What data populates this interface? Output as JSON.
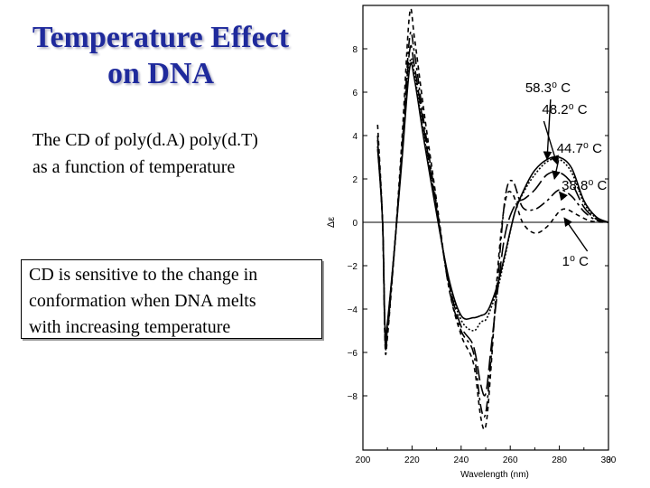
{
  "slide": {
    "title_lines": [
      "Temperature Effect",
      "on DNA"
    ],
    "subtitle_lines": [
      "The CD of poly(d.A) poly(d.T)",
      "as a function of temperature"
    ],
    "note_lines": [
      "CD is sensitive to the change in",
      "conformation when DNA melts",
      "with increasing temperature"
    ]
  },
  "chart_data": {
    "type": "line",
    "xlabel": "Wavelength (nm)",
    "ylabel": "Δε",
    "xlim": [
      200,
      300
    ],
    "ylim": [
      -10.5,
      10
    ],
    "xticks": [
      "200",
      "220",
      "240",
      "260",
      "280",
      "300",
      "3"
    ],
    "yticks": [
      "8",
      "6",
      "4",
      "2",
      "0",
      "−2",
      "−4",
      "−6",
      "−8"
    ],
    "ytick_values": [
      8,
      6,
      4,
      2,
      0,
      -2,
      -4,
      -6,
      -8
    ],
    "series": [
      {
        "label": "1⁰ C",
        "dash": "5,4",
        "points": [
          [
            206,
            4.5
          ],
          [
            208,
            0
          ],
          [
            209,
            -5.6
          ],
          [
            210,
            -5.3
          ],
          [
            213,
            -1
          ],
          [
            216,
            4
          ],
          [
            219,
            9.6
          ],
          [
            221,
            8.5
          ],
          [
            225,
            5
          ],
          [
            230,
            1
          ],
          [
            235,
            -3
          ],
          [
            240,
            -5.2
          ],
          [
            245,
            -6.5
          ],
          [
            248,
            -9
          ],
          [
            250,
            -9.4
          ],
          [
            252,
            -7
          ],
          [
            255,
            -2
          ],
          [
            258,
            1
          ],
          [
            261,
            1.3
          ],
          [
            265,
            0
          ],
          [
            270,
            -0.5
          ],
          [
            275,
            -0.2
          ],
          [
            280,
            0.5
          ],
          [
            283,
            0.6
          ],
          [
            288,
            0.3
          ],
          [
            293,
            0.05
          ],
          [
            300,
            0
          ]
        ]
      },
      {
        "label": "38.8⁰ C",
        "dash": "11,4,3,4",
        "points": [
          [
            206,
            4
          ],
          [
            208,
            0
          ],
          [
            209,
            -5.4
          ],
          [
            210,
            -5.1
          ],
          [
            213,
            -1
          ],
          [
            216,
            3.5
          ],
          [
            219,
            8.5
          ],
          [
            221,
            7.8
          ],
          [
            225,
            4.5
          ],
          [
            230,
            0.8
          ],
          [
            235,
            -3
          ],
          [
            240,
            -5
          ],
          [
            245,
            -6
          ],
          [
            248,
            -8.5
          ],
          [
            250,
            -8.8
          ],
          [
            252,
            -6.5
          ],
          [
            255,
            -2.5
          ],
          [
            258,
            1.2
          ],
          [
            261,
            1.9
          ],
          [
            265,
            0.7
          ],
          [
            270,
            0.6
          ],
          [
            275,
            1
          ],
          [
            280,
            1.5
          ],
          [
            285,
            1.2
          ],
          [
            290,
            0.5
          ],
          [
            295,
            0.1
          ],
          [
            300,
            0
          ]
        ]
      },
      {
        "label": "44.7⁰ C",
        "dash": "16,5",
        "points": [
          [
            206,
            3.8
          ],
          [
            208,
            0
          ],
          [
            209,
            -5.2
          ],
          [
            210,
            -4.9
          ],
          [
            213,
            -1
          ],
          [
            216,
            3.4
          ],
          [
            219,
            7.9
          ],
          [
            221,
            7.2
          ],
          [
            225,
            4.2
          ],
          [
            230,
            0.6
          ],
          [
            235,
            -2.8
          ],
          [
            240,
            -4.8
          ],
          [
            245,
            -5.7
          ],
          [
            248,
            -7.5
          ],
          [
            250,
            -7.9
          ],
          [
            252,
            -6
          ],
          [
            255,
            -3
          ],
          [
            258,
            -0.5
          ],
          [
            262,
            0.8
          ],
          [
            266,
            1.1
          ],
          [
            270,
            1.5
          ],
          [
            275,
            2.2
          ],
          [
            280,
            2.3
          ],
          [
            285,
            1.8
          ],
          [
            290,
            0.7
          ],
          [
            295,
            0.15
          ],
          [
            300,
            0
          ]
        ]
      },
      {
        "label": "48.2⁰ C",
        "dash": "2,2",
        "points": [
          [
            206,
            3.5
          ],
          [
            208,
            0
          ],
          [
            209,
            -5
          ],
          [
            210,
            -4.7
          ],
          [
            213,
            -1
          ],
          [
            216,
            3.2
          ],
          [
            219,
            7.3
          ],
          [
            221,
            6.8
          ],
          [
            225,
            3.9
          ],
          [
            230,
            0.5
          ],
          [
            235,
            -2.7
          ],
          [
            240,
            -4.5
          ],
          [
            245,
            -5
          ],
          [
            248,
            -4.6
          ],
          [
            250,
            -4.5
          ],
          [
            252,
            -4
          ],
          [
            255,
            -3
          ],
          [
            258,
            -1.5
          ],
          [
            262,
            0.5
          ],
          [
            266,
            1.5
          ],
          [
            270,
            2.2
          ],
          [
            275,
            2.8
          ],
          [
            280,
            2.9
          ],
          [
            285,
            2.3
          ],
          [
            290,
            0.9
          ],
          [
            295,
            0.2
          ],
          [
            300,
            0
          ]
        ]
      },
      {
        "label": "58.3⁰ C",
        "dash": "",
        "points": [
          [
            206,
            3.4
          ],
          [
            208,
            0
          ],
          [
            209,
            -4.9
          ],
          [
            210,
            -4.6
          ],
          [
            213,
            -1
          ],
          [
            216,
            3
          ],
          [
            219,
            7.1
          ],
          [
            221,
            6.6
          ],
          [
            225,
            3.7
          ],
          [
            230,
            0.4
          ],
          [
            235,
            -2.6
          ],
          [
            240,
            -4.3
          ],
          [
            245,
            -4.4
          ],
          [
            248,
            -4.3
          ],
          [
            250,
            -4.2
          ],
          [
            252,
            -3.8
          ],
          [
            255,
            -2.8
          ],
          [
            258,
            -1.4
          ],
          [
            262,
            0.5
          ],
          [
            266,
            1.6
          ],
          [
            270,
            2.4
          ],
          [
            275,
            2.9
          ],
          [
            280,
            3
          ],
          [
            285,
            2.5
          ],
          [
            290,
            1
          ],
          [
            295,
            0.25
          ],
          [
            300,
            0
          ]
        ]
      }
    ],
    "annotations": [
      {
        "text": "58.3⁰ C",
        "x": 272,
        "y": 6.0,
        "arrow_to": [
          275,
          2.9
        ]
      },
      {
        "text": "48.2⁰ C",
        "x": 295,
        "y": 5.0,
        "arrow_to": [
          279,
          2.7
        ]
      },
      {
        "text": "44.7⁰ C",
        "x": 301,
        "y": 3.2,
        "arrow_to": [
          278,
          2.0
        ]
      },
      {
        "text": "38.8⁰ C",
        "x": 303,
        "y": 1.5,
        "arrow_to": [
          280,
          1.4
        ]
      },
      {
        "text": "1⁰ C",
        "x": 287,
        "y": -2.0,
        "arrow_to": [
          282,
          0.2
        ]
      }
    ]
  }
}
